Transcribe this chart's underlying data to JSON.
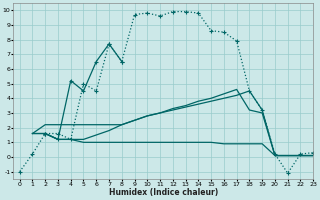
{
  "xlabel": "Humidex (Indice chaleur)",
  "xlim": [
    -0.5,
    23
  ],
  "ylim": [
    -1.5,
    10.5
  ],
  "xtick_labels": [
    "0",
    "1",
    "2",
    "3",
    "4",
    "5",
    "6",
    "7",
    "8",
    "9",
    "10",
    "11",
    "12",
    "13",
    "14",
    "15",
    "16",
    "17",
    "18",
    "19",
    "20",
    "21",
    "22",
    "23"
  ],
  "xtick_positions": [
    0,
    1,
    2,
    3,
    4,
    5,
    6,
    7,
    8,
    9,
    10,
    11,
    12,
    13,
    14,
    15,
    16,
    17,
    18,
    19,
    20,
    21,
    22,
    23
  ],
  "ytick_positions": [
    -1,
    0,
    1,
    2,
    3,
    4,
    5,
    6,
    7,
    8,
    9,
    10
  ],
  "ytick_labels": [
    "-1",
    "0",
    "1",
    "2",
    "3",
    "4",
    "5",
    "6",
    "7",
    "8",
    "9",
    "10"
  ],
  "bg_color": "#cce8e8",
  "line_color": "#006666",
  "grid_color": "#99cccc",
  "series": [
    {
      "x": [
        0,
        1,
        2,
        3,
        4,
        5,
        6,
        7,
        8,
        9,
        10,
        11,
        12,
        13,
        14,
        15,
        16,
        17,
        18,
        19,
        20,
        21,
        22,
        23
      ],
      "y": [
        -1,
        0.2,
        1.6,
        1.6,
        1.2,
        5.0,
        4.5,
        7.7,
        6.5,
        9.7,
        9.8,
        9.6,
        9.9,
        9.9,
        9.8,
        8.6,
        8.5,
        7.9,
        4.5,
        3.2,
        0.2,
        -1.1,
        0.2,
        0.3
      ],
      "linestyle": "dotted",
      "marker": "+",
      "linewidth": 0.9
    },
    {
      "x": [
        2,
        3,
        4,
        5,
        6,
        7,
        8
      ],
      "y": [
        1.6,
        1.2,
        5.2,
        4.5,
        6.5,
        7.7,
        6.5
      ],
      "linestyle": "solid",
      "marker": "+",
      "linewidth": 0.9
    },
    {
      "x": [
        1,
        2,
        3,
        4,
        5,
        6,
        7,
        8,
        9,
        10,
        11,
        12,
        13,
        14,
        15,
        16,
        17,
        18,
        19,
        20,
        21,
        22,
        23
      ],
      "y": [
        1.6,
        1.6,
        1.2,
        1.2,
        1.0,
        1.0,
        1.0,
        1.0,
        1.0,
        1.0,
        1.0,
        1.0,
        1.0,
        1.0,
        1.0,
        0.9,
        0.9,
        0.9,
        0.9,
        0.1,
        0.1,
        0.1,
        0.1
      ],
      "linestyle": "solid",
      "marker": null,
      "linewidth": 0.9
    },
    {
      "x": [
        1,
        2,
        3,
        4,
        5,
        6,
        7,
        8,
        9,
        10,
        11,
        12,
        13,
        14,
        15,
        16,
        17,
        18,
        19,
        20,
        21,
        22,
        23
      ],
      "y": [
        1.6,
        1.6,
        1.2,
        1.2,
        1.2,
        1.5,
        1.8,
        2.2,
        2.5,
        2.8,
        3.0,
        3.2,
        3.4,
        3.6,
        3.8,
        4.0,
        4.2,
        4.5,
        3.2,
        0.1,
        0.1,
        0.1,
        0.1
      ],
      "linestyle": "solid",
      "marker": null,
      "linewidth": 0.9
    },
    {
      "x": [
        1,
        2,
        3,
        4,
        5,
        6,
        7,
        8,
        9,
        10,
        11,
        12,
        13,
        14,
        15,
        16,
        17,
        18,
        19,
        20,
        21,
        22,
        23
      ],
      "y": [
        1.6,
        2.2,
        2.2,
        2.2,
        2.2,
        2.2,
        2.2,
        2.2,
        2.5,
        2.8,
        3.0,
        3.3,
        3.5,
        3.8,
        4.0,
        4.3,
        4.6,
        3.2,
        3.0,
        0.1,
        0.1,
        0.1,
        0.1
      ],
      "linestyle": "solid",
      "marker": null,
      "linewidth": 0.9
    }
  ]
}
